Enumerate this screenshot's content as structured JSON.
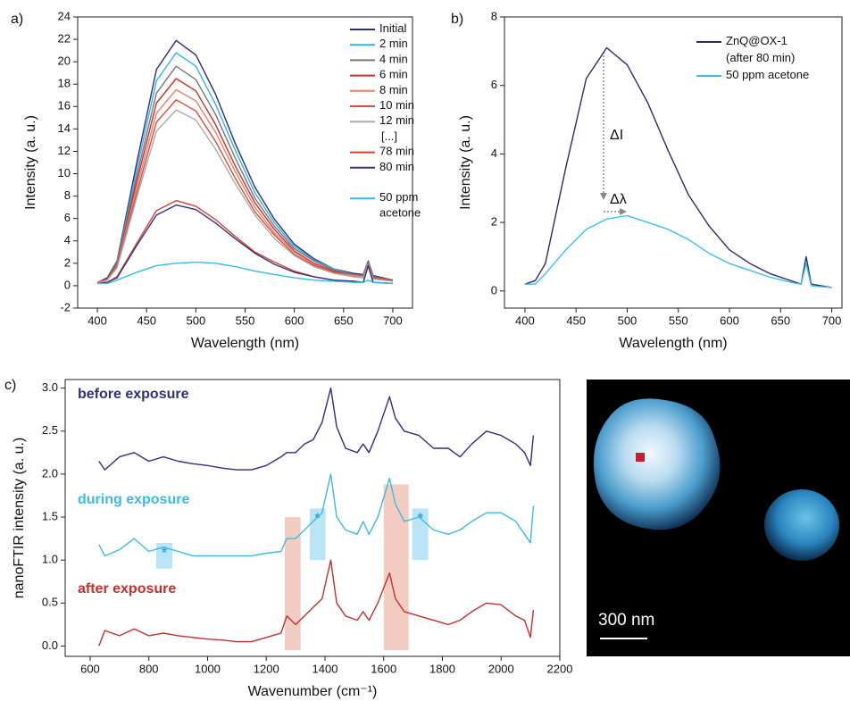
{
  "chart_data": [
    {
      "type": "line",
      "label": "a)",
      "xlabel": "Wavelength (nm)",
      "ylabel": "Intensity (a. u.)",
      "xlim": [
        380,
        720
      ],
      "ylim": [
        -2,
        24
      ],
      "xticks": [
        400,
        450,
        500,
        550,
        600,
        650,
        700
      ],
      "yticks": [
        -2,
        0,
        2,
        4,
        6,
        8,
        10,
        12,
        14,
        16,
        18,
        20,
        22,
        24
      ],
      "legend": "upper right",
      "legend_note": "[...]",
      "x": [
        400,
        410,
        420,
        440,
        460,
        480,
        500,
        520,
        540,
        560,
        580,
        600,
        620,
        640,
        660,
        670,
        675,
        680,
        700
      ],
      "series": [
        {
          "name": "Initial",
          "color": "#2b2e7e",
          "values": [
            0.3,
            0.7,
            2.2,
            11.0,
            19.3,
            21.9,
            20.6,
            17.1,
            12.7,
            8.8,
            5.9,
            3.7,
            2.4,
            1.5,
            1.1,
            1.0,
            2.2,
            0.9,
            0.5
          ]
        },
        {
          "name": "2 min",
          "color": "#30b4e6",
          "values": [
            0.3,
            0.6,
            2.1,
            10.4,
            18.3,
            20.8,
            19.6,
            16.2,
            12.1,
            8.3,
            5.6,
            3.5,
            2.3,
            1.5,
            1.0,
            0.9,
            2.1,
            0.8,
            0.5
          ]
        },
        {
          "name": "4 min",
          "color": "#777777",
          "values": [
            0.3,
            0.6,
            2.0,
            9.8,
            17.2,
            19.6,
            18.4,
            15.3,
            11.4,
            7.8,
            5.3,
            3.3,
            2.2,
            1.4,
            1.0,
            0.9,
            2.1,
            0.8,
            0.5
          ]
        },
        {
          "name": "6 min",
          "color": "#c8302c",
          "values": [
            0.3,
            0.6,
            1.9,
            9.3,
            16.3,
            18.5,
            17.4,
            14.4,
            10.7,
            7.4,
            5.0,
            3.1,
            2.0,
            1.3,
            0.9,
            0.8,
            2.0,
            0.7,
            0.5
          ]
        },
        {
          "name": "8 min",
          "color": "#ef7f6f",
          "values": [
            0.3,
            0.5,
            1.8,
            8.8,
            15.4,
            17.5,
            16.5,
            13.7,
            10.2,
            7.0,
            4.7,
            3.0,
            1.9,
            1.2,
            0.9,
            0.8,
            2.0,
            0.7,
            0.4
          ]
        },
        {
          "name": "10 min",
          "color": "#d64b3a",
          "values": [
            0.2,
            0.5,
            1.7,
            8.3,
            14.6,
            16.6,
            15.6,
            12.9,
            9.6,
            6.6,
            4.5,
            2.8,
            1.8,
            1.2,
            0.8,
            0.7,
            2.0,
            0.7,
            0.4
          ]
        },
        {
          "name": "12 min",
          "color": "#aaaaaa",
          "values": [
            0.2,
            0.5,
            1.6,
            7.9,
            13.8,
            15.7,
            14.8,
            12.2,
            9.1,
            6.3,
            4.2,
            2.7,
            1.7,
            1.1,
            0.8,
            0.7,
            1.9,
            0.6,
            0.4
          ]
        },
        {
          "name": "78 min",
          "color": "#d84030",
          "values": [
            0.2,
            0.3,
            0.8,
            3.8,
            6.7,
            7.6,
            7.1,
            5.9,
            4.4,
            3.0,
            2.1,
            1.3,
            0.8,
            0.5,
            0.4,
            0.3,
            1.8,
            0.3,
            0.2
          ]
        },
        {
          "name": "80 min",
          "color": "#34337a",
          "values": [
            0.2,
            0.3,
            0.7,
            3.6,
            6.3,
            7.2,
            6.8,
            5.6,
            4.2,
            2.9,
            1.9,
            1.2,
            0.8,
            0.5,
            0.4,
            0.3,
            1.8,
            0.3,
            0.2
          ]
        },
        {
          "name": "50 ppm acetone",
          "color": "#33bbe8",
          "values": [
            0.2,
            0.2,
            0.5,
            1.2,
            1.8,
            2.0,
            2.1,
            2.0,
            1.7,
            1.3,
            1.0,
            0.7,
            0.5,
            0.4,
            0.3,
            0.3,
            0.5,
            0.3,
            0.2
          ]
        }
      ]
    },
    {
      "type": "line",
      "label": "b)",
      "xlabel": "Wavelength (nm)",
      "ylabel": "Intensity (a. u.)",
      "xlim": [
        380,
        710
      ],
      "ylim": [
        -0.5,
        8
      ],
      "xticks": [
        400,
        450,
        500,
        550,
        600,
        650,
        700
      ],
      "yticks": [
        0,
        2,
        4,
        6,
        8
      ],
      "legend": "upper right",
      "annotations": [
        "ΔI",
        "Δλ"
      ],
      "x": [
        400,
        410,
        420,
        440,
        460,
        480,
        500,
        520,
        540,
        560,
        580,
        600,
        620,
        640,
        660,
        670,
        675,
        680,
        700
      ],
      "series": [
        {
          "name": "ZnQ@OX-1 (after 80 min)",
          "color": "#2d2a6e",
          "values": [
            0.2,
            0.3,
            0.8,
            3.6,
            6.2,
            7.1,
            6.6,
            5.5,
            4.1,
            2.8,
            1.9,
            1.2,
            0.8,
            0.5,
            0.3,
            0.2,
            1.0,
            0.2,
            0.1
          ]
        },
        {
          "name": "50 ppm acetone",
          "color": "#3ac0ee",
          "values": [
            0.2,
            0.2,
            0.5,
            1.2,
            1.8,
            2.1,
            2.2,
            2.0,
            1.8,
            1.5,
            1.1,
            0.8,
            0.6,
            0.4,
            0.25,
            0.2,
            0.8,
            0.15,
            0.1
          ]
        }
      ]
    },
    {
      "type": "line",
      "label": "c)",
      "xlabel": "Wavenumber (cm⁻¹)",
      "ylabel": "nanoFTIR intensity (a. u.)",
      "xlim": [
        515,
        2200
      ],
      "ylim": [
        -0.12,
        3.1
      ],
      "xticks": [
        600,
        800,
        1000,
        1200,
        1400,
        1600,
        1800,
        2000,
        2200
      ],
      "yticks": [
        {
          "value": 0,
          "label": "0.0"
        },
        0.5,
        {
          "value": 1,
          "label": "1.0"
        },
        1.5,
        {
          "value": 2,
          "label": "2.0"
        },
        2.5,
        {
          "value": 3,
          "label": "3.0"
        }
      ],
      "highlights": [
        {
          "x": [
            825,
            880
          ],
          "color": "#aee0f5",
          "label": "*"
        },
        {
          "x": [
            1263,
            1317
          ],
          "color": "#f1c3b6"
        },
        {
          "x": [
            1348,
            1402
          ],
          "color": "#aee0f5",
          "label": "*"
        },
        {
          "x": [
            1600,
            1685
          ],
          "color": "#f1c3b6"
        },
        {
          "x": [
            1697,
            1752
          ],
          "color": "#aee0f5",
          "label": "*"
        }
      ],
      "x": [
        630,
        650,
        700,
        750,
        800,
        850,
        900,
        950,
        1000,
        1050,
        1100,
        1150,
        1200,
        1250,
        1270,
        1300,
        1330,
        1360,
        1390,
        1420,
        1440,
        1470,
        1510,
        1530,
        1550,
        1580,
        1620,
        1640,
        1670,
        1720,
        1770,
        1820,
        1860,
        1900,
        1950,
        2000,
        2050,
        2080,
        2100,
        2110
      ],
      "series": [
        {
          "name": "before exposure",
          "color": "#2e2f7f",
          "values": [
            2.15,
            2.05,
            2.2,
            2.25,
            2.15,
            2.2,
            2.15,
            2.12,
            2.1,
            2.07,
            2.05,
            2.05,
            2.1,
            2.2,
            2.25,
            2.25,
            2.35,
            2.4,
            2.6,
            3.0,
            2.55,
            2.3,
            2.25,
            2.35,
            2.25,
            2.5,
            2.9,
            2.65,
            2.5,
            2.45,
            2.3,
            2.3,
            2.2,
            2.35,
            2.5,
            2.45,
            2.35,
            2.25,
            2.1,
            2.45
          ]
        },
        {
          "name": "during exposure",
          "color": "#3bbbe4",
          "values": [
            1.18,
            1.05,
            1.12,
            1.25,
            1.1,
            1.15,
            1.1,
            1.05,
            1.05,
            1.05,
            1.05,
            1.05,
            1.08,
            1.1,
            1.25,
            1.25,
            1.35,
            1.45,
            1.55,
            2.0,
            1.5,
            1.35,
            1.3,
            1.45,
            1.3,
            1.5,
            1.95,
            1.65,
            1.45,
            1.5,
            1.35,
            1.3,
            1.35,
            1.45,
            1.55,
            1.55,
            1.45,
            1.3,
            1.2,
            1.63
          ]
        },
        {
          "name": "after exposure",
          "color": "#c4302b",
          "values": [
            0.0,
            0.18,
            0.12,
            0.2,
            0.12,
            0.15,
            0.12,
            0.1,
            0.08,
            0.07,
            0.05,
            0.05,
            0.1,
            0.15,
            0.35,
            0.25,
            0.35,
            0.45,
            0.55,
            1.0,
            0.5,
            0.35,
            0.3,
            0.4,
            0.3,
            0.5,
            0.85,
            0.55,
            0.4,
            0.35,
            0.3,
            0.25,
            0.3,
            0.4,
            0.5,
            0.48,
            0.35,
            0.3,
            0.1,
            0.42
          ]
        }
      ]
    }
  ],
  "image": {
    "scale_label": "300 nm"
  }
}
